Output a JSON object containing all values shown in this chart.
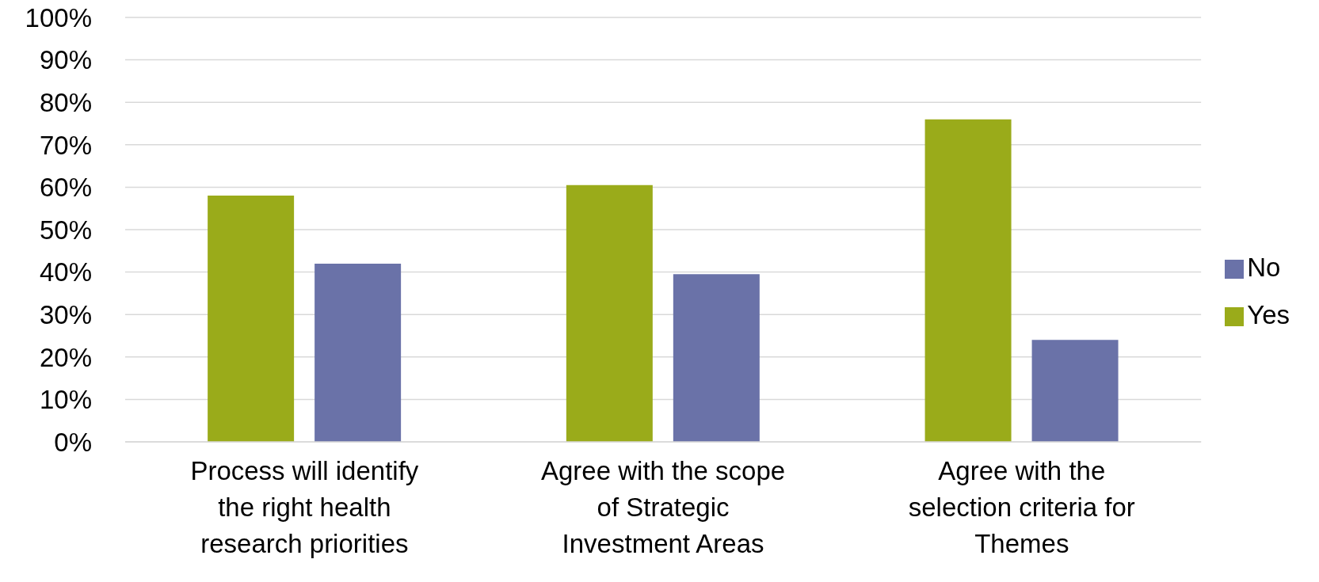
{
  "chart_data": {
    "type": "bar",
    "categories": [
      "Process will identify the right health research priorities",
      "Agree with the scope of Strategic Investment Areas",
      "Agree with the selection criteria for Themes"
    ],
    "series": [
      {
        "name": "Yes",
        "color": "#9aab1a",
        "values": [
          58,
          60.5,
          76
        ]
      },
      {
        "name": "No",
        "color": "#6a72a8",
        "values": [
          42,
          39.5,
          24
        ]
      }
    ],
    "ylim": [
      0,
      100
    ],
    "yticks": [
      {
        "value": 0,
        "label": "0%"
      },
      {
        "value": 10,
        "label": "10%"
      },
      {
        "value": 20,
        "label": "20%"
      },
      {
        "value": 30,
        "label": "30%"
      },
      {
        "value": 40,
        "label": "40%"
      },
      {
        "value": 50,
        "label": "50%"
      },
      {
        "value": 60,
        "label": "60%"
      },
      {
        "value": 70,
        "label": "70%"
      },
      {
        "value": 80,
        "label": "80%"
      },
      {
        "value": 90,
        "label": "90%"
      },
      {
        "value": 100,
        "label": "100%"
      }
    ],
    "grid": "y",
    "legend": "right"
  }
}
